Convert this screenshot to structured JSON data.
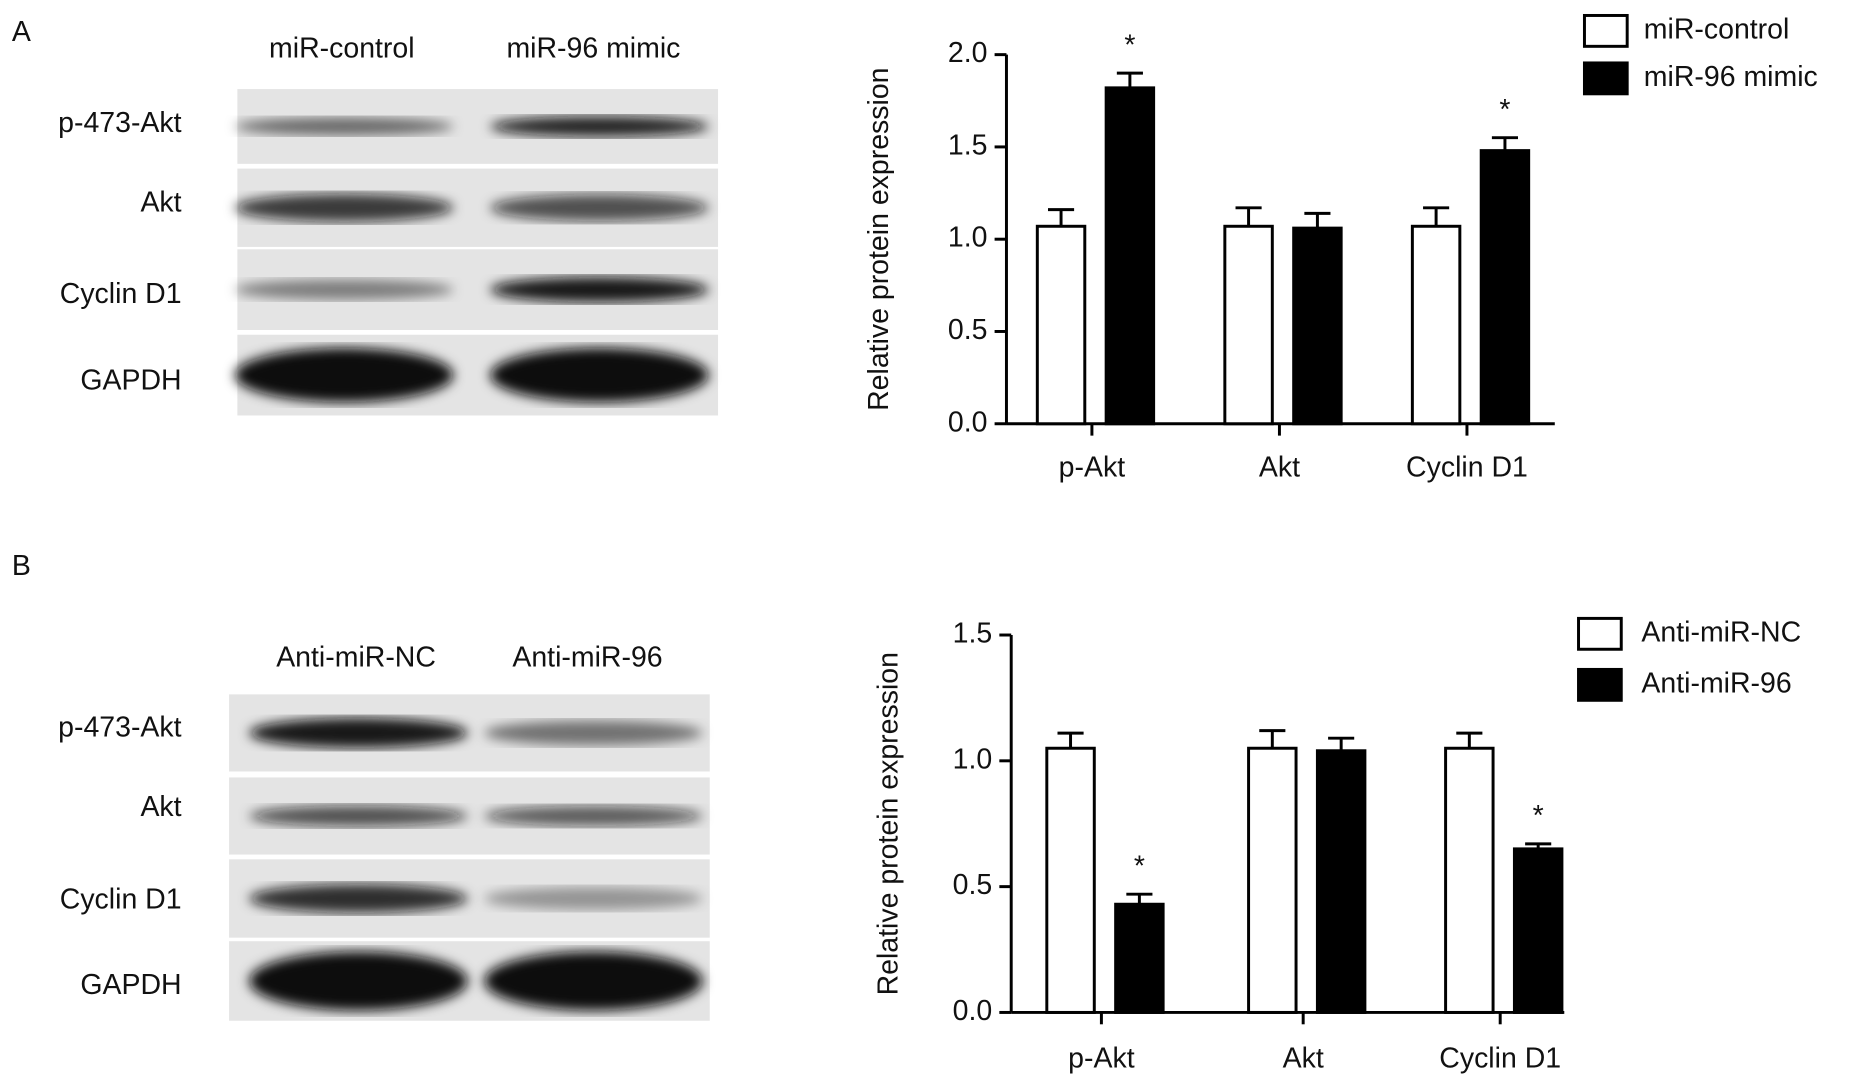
{
  "figure": {
    "panels": [
      {
        "label": "A",
        "lanes": [
          "miR-control",
          "miR-96 mimic"
        ],
        "rows": [
          "p-473-Akt",
          "Akt",
          "Cyclin D1",
          "GAPDH"
        ]
      },
      {
        "label": "B",
        "lanes": [
          "Anti-miR-NC",
          "Anti-miR-96"
        ],
        "rows": [
          "p-473-Akt",
          "Akt",
          "Cyclin D1",
          "GAPDH"
        ]
      }
    ]
  },
  "chart_data": [
    {
      "type": "bar",
      "ylabel": "Relative protein expression",
      "categories": [
        "p-Akt",
        "Akt",
        "Cyclin D1"
      ],
      "series": [
        {
          "name": "miR-control",
          "color": "#ffffff",
          "values": [
            1.07,
            1.07,
            1.07
          ],
          "errors": [
            0.09,
            0.1,
            0.1
          ]
        },
        {
          "name": "miR-96 mimic",
          "color": "#000000",
          "values": [
            1.82,
            1.06,
            1.48
          ],
          "errors": [
            0.08,
            0.08,
            0.07
          ]
        }
      ],
      "annotations": [
        {
          "text": "*",
          "category": "p-Akt",
          "series": "miR-96 mimic"
        },
        {
          "text": "*",
          "category": "Cyclin D1",
          "series": "miR-96 mimic"
        }
      ],
      "edgecolor": "#000000",
      "ylim": [
        0,
        2
      ],
      "yticks": [
        {
          "value": 0,
          "label": "0.0"
        },
        0.5,
        {
          "value": 1,
          "label": "1.0"
        },
        1.5,
        {
          "value": 2,
          "label": "2.0"
        }
      ],
      "legend": "upper right"
    },
    {
      "type": "bar",
      "ylabel": "Relative protein expression",
      "categories": [
        "p-Akt",
        "Akt",
        "Cyclin D1"
      ],
      "series": [
        {
          "name": "Anti-miR-NC",
          "color": "#ffffff",
          "values": [
            1.05,
            1.05,
            1.05
          ],
          "errors": [
            0.06,
            0.07,
            0.06
          ]
        },
        {
          "name": "Anti-miR-96",
          "color": "#000000",
          "values": [
            0.43,
            1.04,
            0.65
          ],
          "errors": [
            0.04,
            0.05,
            0.02
          ]
        }
      ],
      "annotations": [
        {
          "text": "*",
          "category": "p-Akt",
          "series": "Anti-miR-96"
        },
        {
          "text": "*",
          "category": "Cyclin D1",
          "series": "Anti-miR-96"
        }
      ],
      "edgecolor": "#000000",
      "ylim": [
        0,
        1.5
      ],
      "yticks": [
        {
          "value": 0,
          "label": "0.0"
        },
        0.5,
        {
          "value": 1,
          "label": "1.0"
        },
        1.5
      ],
      "legend": "upper right"
    }
  ]
}
